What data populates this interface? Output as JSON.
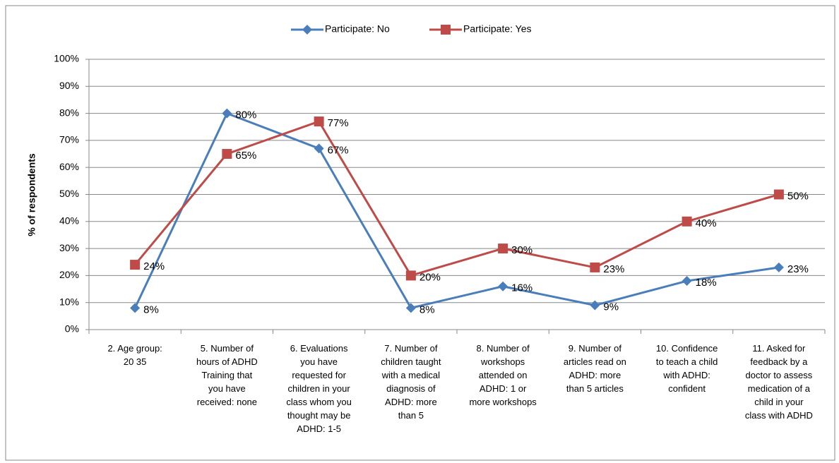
{
  "chart_data": {
    "type": "line",
    "y_label": "% of respondents",
    "categories": [
      [
        "2. Age group:",
        "20 35"
      ],
      [
        "5. Number of",
        "hours of ADHD",
        "Training that",
        "you have",
        "received: none"
      ],
      [
        "6. Evaluations",
        "you have",
        "requested for",
        "children in your",
        "class whom you",
        "thought may be",
        "ADHD: 1-5"
      ],
      [
        "7. Number of",
        "children taught",
        "with a medical",
        "diagnosis of",
        "ADHD: more",
        "than 5"
      ],
      [
        "8. Number of",
        "workshops",
        "attended on",
        "ADHD: 1 or",
        "more workshops"
      ],
      [
        "9. Number of",
        "articles read on",
        "ADHD: more",
        "than 5 articles"
      ],
      [
        "10. Confidence",
        "to teach a child",
        "with ADHD:",
        "confident"
      ],
      [
        "11. Asked for",
        "feedback by a",
        "doctor to assess",
        "medication of a",
        "child in your",
        "class with ADHD"
      ]
    ],
    "series": [
      {
        "name": "Participate: No",
        "color": "#4a7ebb",
        "marker": "diamond",
        "values": [
          8,
          80,
          67,
          8,
          16,
          9,
          18,
          23
        ],
        "value_labels": [
          "8%",
          "80%",
          "67%",
          "8%",
          "16%",
          "9%",
          "18%",
          "23%"
        ]
      },
      {
        "name": "Participate: Yes",
        "color": "#be4b48",
        "marker": "square",
        "values": [
          24,
          65,
          77,
          20,
          30,
          23,
          40,
          50
        ],
        "value_labels": [
          "24%",
          "65%",
          "77%",
          "20%",
          "30%",
          "23%",
          "40%",
          "50%"
        ]
      }
    ],
    "ylim": [
      0,
      100
    ],
    "yticks": [
      {
        "value": 0,
        "label": "0%"
      },
      {
        "value": 10,
        "label": "10%"
      },
      {
        "value": 20,
        "label": "20%"
      },
      {
        "value": 30,
        "label": "30%"
      },
      {
        "value": 40,
        "label": "40%"
      },
      {
        "value": 50,
        "label": "50%"
      },
      {
        "value": 60,
        "label": "60%"
      },
      {
        "value": 70,
        "label": "70%"
      },
      {
        "value": 80,
        "label": "80%"
      },
      {
        "value": 90,
        "label": "90%"
      },
      {
        "value": 100,
        "label": "100%"
      }
    ],
    "grid": true,
    "legend": "top"
  }
}
